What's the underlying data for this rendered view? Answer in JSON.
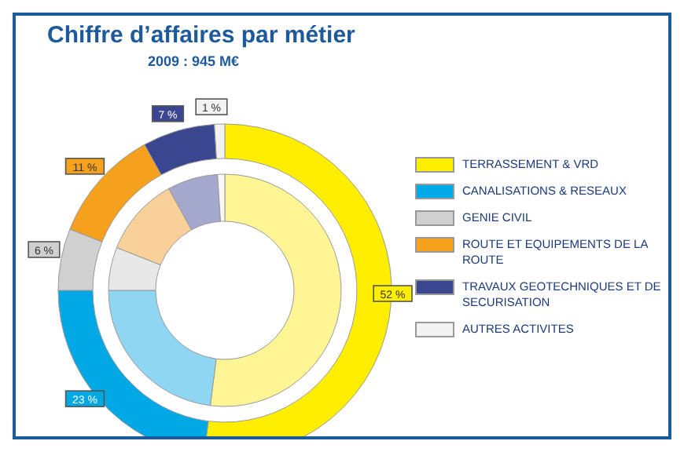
{
  "chart_data": {
    "type": "donut",
    "title": "Chiffre d’affaires par métier",
    "subtitle": "2009 : 945 M€",
    "categories": [
      "TERRASSEMENT & VRD",
      "CANALISATIONS & RESEAUX",
      "GENIE CIVIL",
      "ROUTE ET EQUIPEMENTS DE LA ROUTE",
      "TRAVAUX GEOTECHNIQUES ET DE SECURISATION",
      "AUTRES ACTIVITES"
    ],
    "series": [
      {
        "values": [
          52,
          23,
          6,
          11,
          7,
          1
        ],
        "colors": [
          "#ffee00",
          "#00a8e6",
          "#d0d0d0",
          "#f5a11e",
          "#3a468f",
          "#f2f2f2"
        ],
        "value_labels": [
          "52 %",
          "23 %",
          "6 %",
          "11 %",
          "7 %",
          "1 %"
        ]
      },
      {
        "values": [
          52,
          23,
          6,
          11,
          7,
          1
        ],
        "colors": [
          "#fff594",
          "#8fd6f3",
          "#e8e8e8",
          "#fad09a",
          "#a4a8cc",
          "#f8f8f8"
        ]
      }
    ],
    "legend": "right"
  }
}
